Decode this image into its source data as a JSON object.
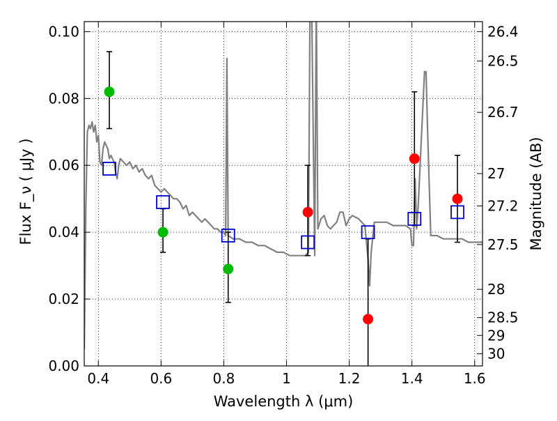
{
  "chart_data": {
    "type": "scatter",
    "xlabel": "Wavelength  λ (μm)",
    "ylabel": "Flux  F_ν  ( μJy )",
    "ylabel_right": "Magnitude (AB)",
    "xlim": [
      0.355,
      1.625
    ],
    "ylim": [
      0.0,
      0.103
    ],
    "grid": true,
    "x_ticks": [
      {
        "value": 0.4,
        "label": "0.4"
      },
      {
        "value": 0.6,
        "label": "0.6"
      },
      {
        "value": 0.8,
        "label": "0.8"
      },
      {
        "value": 1.0,
        "label": "1"
      },
      {
        "value": 1.2,
        "label": "1.2"
      },
      {
        "value": 1.4,
        "label": "1.4"
      },
      {
        "value": 1.6,
        "label": "1.6"
      }
    ],
    "y_ticks": [
      {
        "value": 0.0,
        "label": "0.00"
      },
      {
        "value": 0.02,
        "label": "0.02"
      },
      {
        "value": 0.04,
        "label": "0.04"
      },
      {
        "value": 0.06,
        "label": "0.06"
      },
      {
        "value": 0.08,
        "label": "0.08"
      },
      {
        "value": 0.1,
        "label": "0.10"
      }
    ],
    "right_ticks": [
      {
        "mag": 26.4,
        "label": "26.4"
      },
      {
        "mag": 26.5,
        "label": "26.5"
      },
      {
        "mag": 26.7,
        "label": "26.7"
      },
      {
        "mag": 27.0,
        "label": "27"
      },
      {
        "mag": 27.2,
        "label": "27.2"
      },
      {
        "mag": 27.5,
        "label": "27.5"
      },
      {
        "mag": 28.0,
        "label": "28"
      },
      {
        "mag": 28.5,
        "label": "28.5"
      },
      {
        "mag": 29.0,
        "label": "29"
      },
      {
        "mag": 30.0,
        "label": "30"
      }
    ],
    "series": [
      {
        "kind": "line",
        "color": "#808080",
        "points": [
          [
            0.355,
            0.005
          ],
          [
            0.36,
            0.048
          ],
          [
            0.365,
            0.07
          ],
          [
            0.37,
            0.072
          ],
          [
            0.375,
            0.071
          ],
          [
            0.38,
            0.073
          ],
          [
            0.385,
            0.07
          ],
          [
            0.39,
            0.072
          ],
          [
            0.395,
            0.067
          ],
          [
            0.4,
            0.069
          ],
          [
            0.405,
            0.061
          ],
          [
            0.41,
            0.06
          ],
          [
            0.415,
            0.065
          ],
          [
            0.42,
            0.067
          ],
          [
            0.425,
            0.066
          ],
          [
            0.43,
            0.065
          ],
          [
            0.435,
            0.062
          ],
          [
            0.44,
            0.063
          ],
          [
            0.445,
            0.062
          ],
          [
            0.45,
            0.061
          ],
          [
            0.455,
            0.058
          ],
          [
            0.46,
            0.056
          ],
          [
            0.465,
            0.06
          ],
          [
            0.47,
            0.062
          ],
          [
            0.48,
            0.061
          ],
          [
            0.49,
            0.06
          ],
          [
            0.5,
            0.061
          ],
          [
            0.51,
            0.059
          ],
          [
            0.52,
            0.06
          ],
          [
            0.53,
            0.058
          ],
          [
            0.54,
            0.059
          ],
          [
            0.55,
            0.057
          ],
          [
            0.56,
            0.056
          ],
          [
            0.57,
            0.057
          ],
          [
            0.58,
            0.054
          ],
          [
            0.59,
            0.053
          ],
          [
            0.6,
            0.052
          ],
          [
            0.61,
            0.053
          ],
          [
            0.62,
            0.052
          ],
          [
            0.63,
            0.051
          ],
          [
            0.64,
            0.05
          ],
          [
            0.65,
            0.05
          ],
          [
            0.66,
            0.049
          ],
          [
            0.67,
            0.047
          ],
          [
            0.68,
            0.048
          ],
          [
            0.69,
            0.045
          ],
          [
            0.7,
            0.046
          ],
          [
            0.71,
            0.045
          ],
          [
            0.72,
            0.044
          ],
          [
            0.73,
            0.043
          ],
          [
            0.74,
            0.044
          ],
          [
            0.75,
            0.043
          ],
          [
            0.76,
            0.042
          ],
          [
            0.77,
            0.041
          ],
          [
            0.78,
            0.041
          ],
          [
            0.79,
            0.04
          ],
          [
            0.8,
            0.04
          ],
          [
            0.806,
            0.039
          ],
          [
            0.81,
            0.092
          ],
          [
            0.814,
            0.039
          ],
          [
            0.83,
            0.038
          ],
          [
            0.85,
            0.038
          ],
          [
            0.87,
            0.037
          ],
          [
            0.89,
            0.037
          ],
          [
            0.91,
            0.036
          ],
          [
            0.93,
            0.036
          ],
          [
            0.95,
            0.035
          ],
          [
            0.97,
            0.034
          ],
          [
            0.99,
            0.034
          ],
          [
            1.01,
            0.033
          ],
          [
            1.03,
            0.033
          ],
          [
            1.05,
            0.033
          ],
          [
            1.06,
            0.033
          ],
          [
            1.07,
            0.034
          ],
          [
            1.075,
            0.11
          ],
          [
            1.08,
            0.11
          ],
          [
            1.09,
            0.033
          ],
          [
            1.095,
            0.11
          ],
          [
            1.1,
            0.041
          ],
          [
            1.11,
            0.044
          ],
          [
            1.12,
            0.045
          ],
          [
            1.13,
            0.042
          ],
          [
            1.14,
            0.041
          ],
          [
            1.16,
            0.043
          ],
          [
            1.17,
            0.046
          ],
          [
            1.18,
            0.046
          ],
          [
            1.19,
            0.042
          ],
          [
            1.2,
            0.044
          ],
          [
            1.21,
            0.045
          ],
          [
            1.23,
            0.044
          ],
          [
            1.25,
            0.042
          ],
          [
            1.26,
            0.032
          ],
          [
            1.265,
            0.024
          ],
          [
            1.27,
            0.034
          ],
          [
            1.28,
            0.043
          ],
          [
            1.3,
            0.043
          ],
          [
            1.32,
            0.043
          ],
          [
            1.34,
            0.042
          ],
          [
            1.36,
            0.042
          ],
          [
            1.38,
            0.042
          ],
          [
            1.395,
            0.041
          ],
          [
            1.4,
            0.036
          ],
          [
            1.405,
            0.036
          ],
          [
            1.41,
            0.056
          ],
          [
            1.415,
            0.041
          ],
          [
            1.42,
            0.048
          ],
          [
            1.43,
            0.068
          ],
          [
            1.44,
            0.088
          ],
          [
            1.445,
            0.088
          ],
          [
            1.45,
            0.07
          ],
          [
            1.46,
            0.039
          ],
          [
            1.47,
            0.039
          ],
          [
            1.48,
            0.039
          ],
          [
            1.5,
            0.038
          ],
          [
            1.52,
            0.038
          ],
          [
            1.54,
            0.038
          ],
          [
            1.56,
            0.038
          ],
          [
            1.58,
            0.037
          ],
          [
            1.6,
            0.037
          ],
          [
            1.625,
            0.037
          ]
        ]
      },
      {
        "kind": "points",
        "color": "#00bb00",
        "marker": "circle",
        "points": [
          {
            "x": 0.435,
            "y": 0.082,
            "err": [
              0.071,
              0.094
            ]
          },
          {
            "x": 0.606,
            "y": 0.04,
            "err": [
              0.034,
              0.047
            ]
          },
          {
            "x": 0.814,
            "y": 0.029,
            "err": [
              0.019,
              0.04
            ]
          }
        ]
      },
      {
        "kind": "points",
        "color": "#ff0000",
        "marker": "circle",
        "points": [
          {
            "x": 1.068,
            "y": 0.046,
            "err": [
              0.033,
              0.06
            ]
          },
          {
            "x": 1.26,
            "y": 0.014,
            "err": [
              0.0,
              0.038
            ]
          },
          {
            "x": 1.408,
            "y": 0.062,
            "err": [
              0.042,
              0.082
            ]
          },
          {
            "x": 1.545,
            "y": 0.05,
            "err": [
              0.037,
              0.063
            ]
          }
        ]
      },
      {
        "kind": "points",
        "color": "#0000cc",
        "marker": "open-square",
        "points": [
          {
            "x": 0.435,
            "y": 0.059
          },
          {
            "x": 0.606,
            "y": 0.049
          },
          {
            "x": 0.814,
            "y": 0.039
          },
          {
            "x": 1.068,
            "y": 0.037
          },
          {
            "x": 1.26,
            "y": 0.04
          },
          {
            "x": 1.408,
            "y": 0.044
          },
          {
            "x": 1.545,
            "y": 0.046
          }
        ]
      }
    ]
  }
}
